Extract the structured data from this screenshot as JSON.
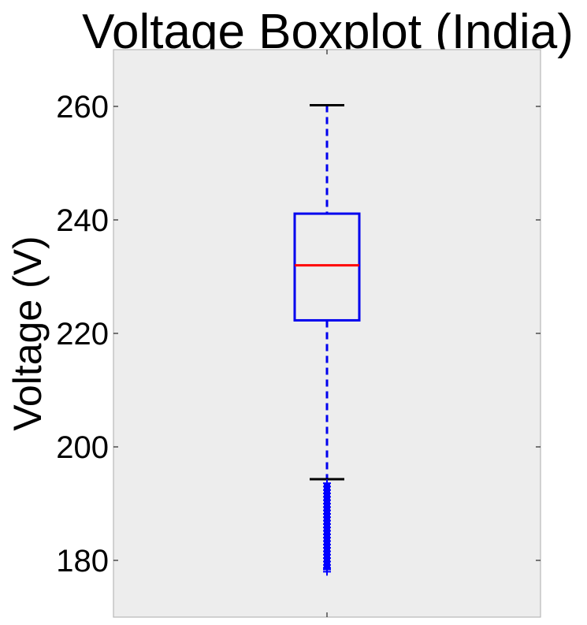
{
  "chart_data": {
    "type": "boxplot",
    "title": "Voltage Boxplot (India)",
    "xlabel": "",
    "ylabel": "Voltage (V)",
    "ylim": [
      170,
      270
    ],
    "yticks": [
      180,
      200,
      220,
      240,
      260
    ],
    "grid": false,
    "legend": "none",
    "boxes": [
      {
        "whisker_low": 194.3,
        "q1": 222.3,
        "median": 232,
        "q3": 241.1,
        "whisker_high": 260.2,
        "outliers": [
          193.6,
          193.0,
          192.4,
          191.8,
          191.2,
          190.6,
          190.0,
          189.4,
          188.8,
          188.2,
          187.6,
          187.0,
          186.4,
          185.8,
          185.2,
          184.6,
          184.0,
          183.4,
          182.8,
          182.2,
          181.6,
          181.0,
          180.4,
          179.8,
          179.2,
          178.7,
          178.4,
          178.0
        ]
      }
    ],
    "colors": {
      "box": "#0000ee",
      "median": "#ff0000",
      "cap": "#000000",
      "outlier": "#0000ff",
      "plot_bg": "#ededed",
      "frame": "#b8b8b8"
    }
  }
}
